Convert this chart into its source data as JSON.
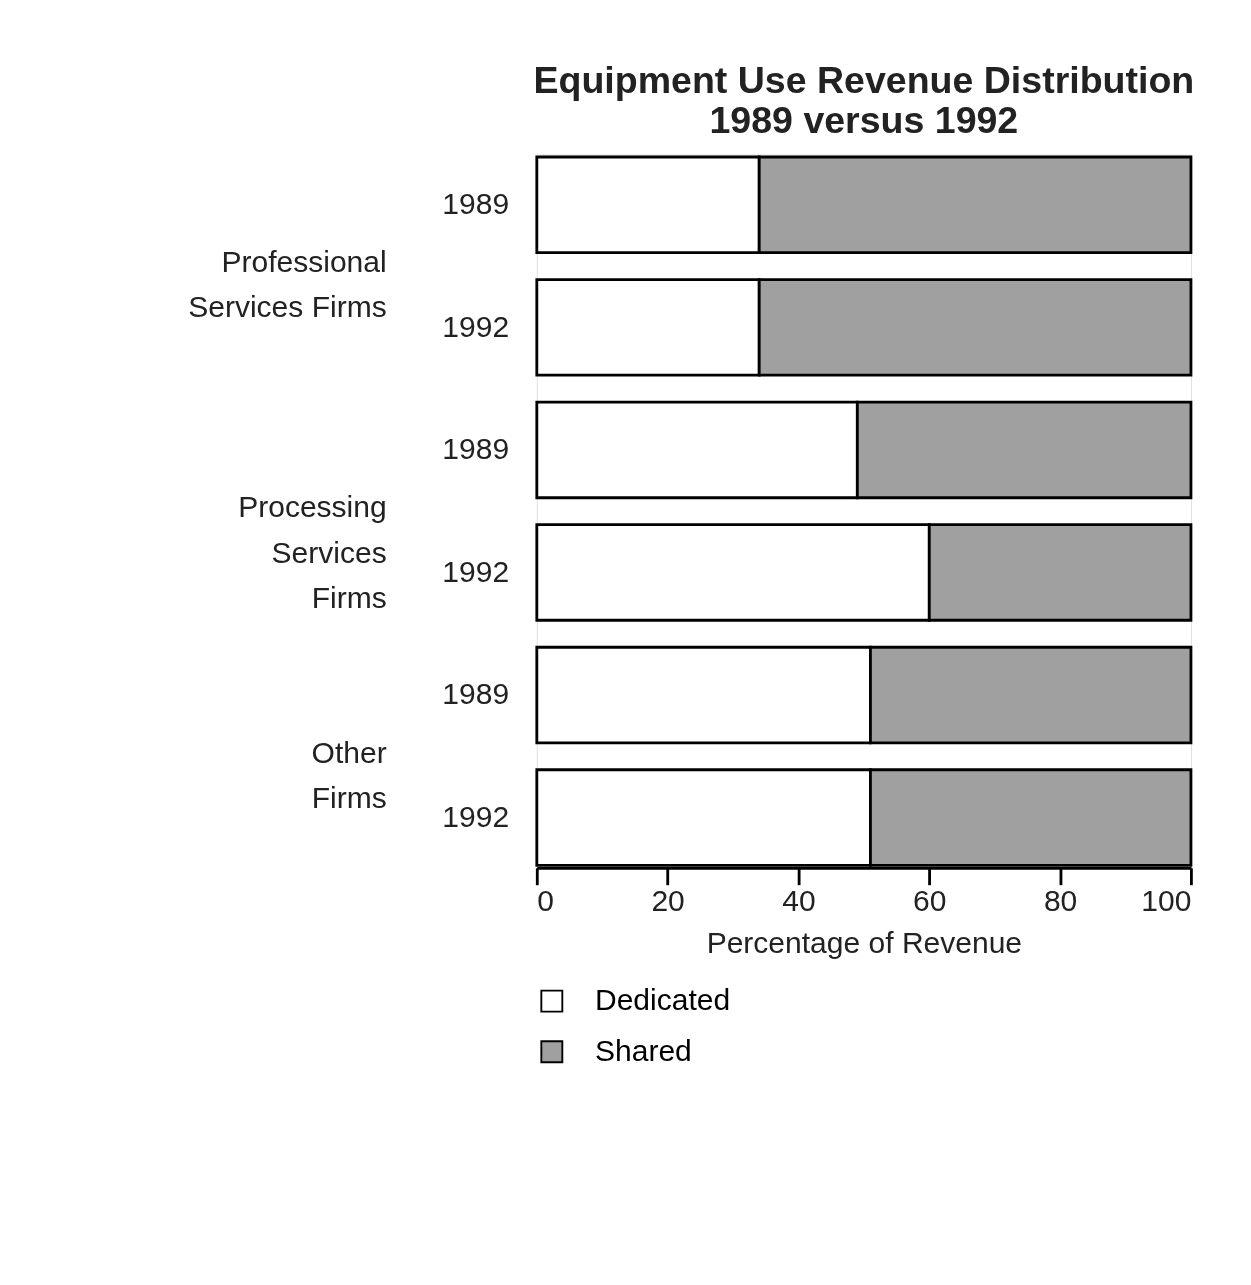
{
  "chart_data": {
    "type": "bar",
    "orientation": "horizontal",
    "stacked": true,
    "title": "Equipment Use Revenue Distribution\n1989 versus 1992",
    "categories": [
      "1989",
      "1992",
      "1989",
      "1992",
      "1989",
      "1992"
    ],
    "series": [
      {
        "name": "Dedicated",
        "color": "#ffffff",
        "values": [
          34,
          34,
          49,
          60,
          51,
          51
        ]
      },
      {
        "name": "Shared",
        "color": "#a0a0a0",
        "values": [
          66,
          66,
          51,
          40,
          49,
          49
        ]
      }
    ],
    "xlabel": "Percentage of Revenue",
    "xlim": [
      0,
      100
    ],
    "xticks": [
      0,
      20,
      40,
      60,
      80,
      100
    ],
    "annotations": [
      "Professional\nServices Firms",
      "Processing\nServices\nFirms",
      "Other\nFirms"
    ],
    "grid": false,
    "legend": "bottom"
  }
}
